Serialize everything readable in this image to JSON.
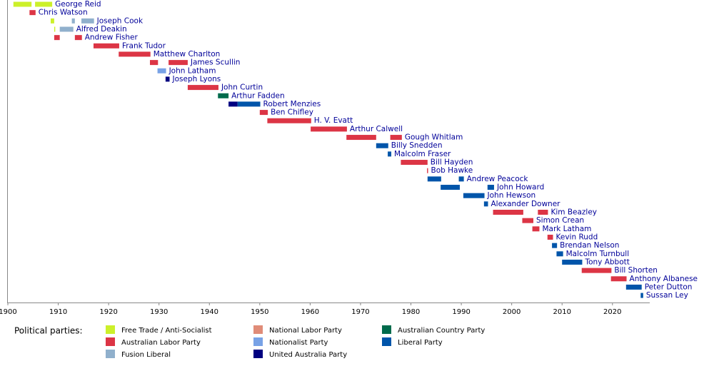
{
  "chart_data": {
    "type": "timeline",
    "xlim": [
      1900,
      2027.4
    ],
    "xticks": [
      1900,
      1910,
      1920,
      1930,
      1940,
      1950,
      1960,
      1970,
      1980,
      1990,
      2000,
      2010,
      2020
    ],
    "rows": [
      {
        "name": "George Reid",
        "segments": [
          {
            "start": 1901.1,
            "end": 1904.7,
            "color": "#ccf02a"
          },
          {
            "start": 1905.4,
            "end": 1908.8,
            "color": "#ccf02a"
          }
        ]
      },
      {
        "name": "Chris Watson",
        "segments": [
          {
            "start": 1904.3,
            "end": 1905.5,
            "color": "#dc3545"
          }
        ]
      },
      {
        "name": "Joseph Cook",
        "segments": [
          {
            "start": 1908.5,
            "end": 1909.2,
            "color": "#ccf02a"
          },
          {
            "start": 1912.7,
            "end": 1913.3,
            "color": "#90b0cc"
          },
          {
            "start": 1914.6,
            "end": 1917.1,
            "color": "#90b0cc"
          }
        ]
      },
      {
        "name": "Alfred Deakin",
        "segments": [
          {
            "start": 1909.2,
            "end": 1909.4,
            "color": "#ccf02a"
          },
          {
            "start": 1910.3,
            "end": 1913.0,
            "color": "#90b0cc"
          }
        ]
      },
      {
        "name": "Andrew Fisher",
        "segments": [
          {
            "start": 1909.2,
            "end": 1910.3,
            "color": "#dc3545"
          },
          {
            "start": 1913.3,
            "end": 1914.7,
            "color": "#dc3545"
          }
        ]
      },
      {
        "name": "Frank Tudor",
        "segments": [
          {
            "start": 1917.0,
            "end": 1922.1,
            "color": "#dc3545"
          }
        ]
      },
      {
        "name": "Matthew Charlton",
        "segments": [
          {
            "start": 1922.0,
            "end": 1928.3,
            "color": "#dc3545"
          }
        ]
      },
      {
        "name": "James Scullin",
        "segments": [
          {
            "start": 1928.2,
            "end": 1929.8,
            "color": "#dc3545"
          },
          {
            "start": 1931.9,
            "end": 1935.7,
            "color": "#dc3545"
          }
        ]
      },
      {
        "name": "John Latham",
        "segments": [
          {
            "start": 1929.7,
            "end": 1931.4,
            "color": "#78a2e6"
          }
        ]
      },
      {
        "name": "Joseph Lyons",
        "segments": [
          {
            "start": 1931.3,
            "end": 1932.1,
            "color": "#000080"
          }
        ]
      },
      {
        "name": "John Curtin",
        "segments": [
          {
            "start": 1935.7,
            "end": 1941.8,
            "color": "#dc3545"
          }
        ]
      },
      {
        "name": "Arthur Fadden",
        "segments": [
          {
            "start": 1941.7,
            "end": 1943.8,
            "color": "#006b4c"
          }
        ]
      },
      {
        "name": "Robert Menzies",
        "segments": [
          {
            "start": 1943.8,
            "end": 1945.6,
            "color": "#000080"
          },
          {
            "start": 1945.6,
            "end": 1950.1,
            "color": "#0055aa"
          }
        ]
      },
      {
        "name": "Ben Chifley",
        "segments": [
          {
            "start": 1950.0,
            "end": 1951.6,
            "color": "#dc3545"
          }
        ]
      },
      {
        "name": "H. V. Evatt",
        "segments": [
          {
            "start": 1951.5,
            "end": 1960.2,
            "color": "#dc3545"
          }
        ]
      },
      {
        "name": "Arthur Calwell",
        "segments": [
          {
            "start": 1960.1,
            "end": 1967.3,
            "color": "#dc3545"
          }
        ]
      },
      {
        "name": "Gough Whitlam",
        "segments": [
          {
            "start": 1967.2,
            "end": 1973.1,
            "color": "#dc3545"
          },
          {
            "start": 1975.9,
            "end": 1978.2,
            "color": "#dc3545"
          }
        ]
      },
      {
        "name": "Billy Snedden",
        "segments": [
          {
            "start": 1973.1,
            "end": 1975.5,
            "color": "#0055aa"
          }
        ]
      },
      {
        "name": "Malcolm Fraser",
        "segments": [
          {
            "start": 1975.4,
            "end": 1976.1,
            "color": "#0055aa"
          }
        ]
      },
      {
        "name": "Bill Hayden",
        "segments": [
          {
            "start": 1978.0,
            "end": 1983.3,
            "color": "#dc3545"
          }
        ]
      },
      {
        "name": "Bob Hawke",
        "segments": [
          {
            "start": 1983.2,
            "end": 1983.4,
            "color": "#dc3545"
          }
        ]
      },
      {
        "name": "Andrew Peacock",
        "segments": [
          {
            "start": 1983.3,
            "end": 1986.0,
            "color": "#0055aa"
          },
          {
            "start": 1989.5,
            "end": 1990.5,
            "color": "#0055aa"
          }
        ]
      },
      {
        "name": "John Howard",
        "segments": [
          {
            "start": 1985.9,
            "end": 1989.7,
            "color": "#0055aa"
          },
          {
            "start": 1995.2,
            "end": 1996.5,
            "color": "#0055aa"
          }
        ]
      },
      {
        "name": "John Hewson",
        "segments": [
          {
            "start": 1990.4,
            "end": 1994.6,
            "color": "#0055aa"
          }
        ]
      },
      {
        "name": "Alexander Downer",
        "segments": [
          {
            "start": 1994.5,
            "end": 1995.3,
            "color": "#0055aa"
          }
        ]
      },
      {
        "name": "Kim Beazley",
        "segments": [
          {
            "start": 1996.3,
            "end": 2002.3,
            "color": "#dc3545"
          },
          {
            "start": 2005.2,
            "end": 2007.2,
            "color": "#dc3545"
          }
        ]
      },
      {
        "name": "Simon Crean",
        "segments": [
          {
            "start": 2002.1,
            "end": 2004.3,
            "color": "#dc3545"
          }
        ]
      },
      {
        "name": "Mark Latham",
        "segments": [
          {
            "start": 2004.1,
            "end": 2005.5,
            "color": "#dc3545"
          }
        ]
      },
      {
        "name": "Kevin Rudd",
        "segments": [
          {
            "start": 2007.1,
            "end": 2008.2,
            "color": "#dc3545"
          }
        ]
      },
      {
        "name": "Brendan Nelson",
        "segments": [
          {
            "start": 2008.0,
            "end": 2009.0,
            "color": "#0055aa"
          }
        ]
      },
      {
        "name": "Malcolm Turnbull",
        "segments": [
          {
            "start": 2008.9,
            "end": 2010.2,
            "color": "#0055aa"
          }
        ]
      },
      {
        "name": "Tony Abbott",
        "segments": [
          {
            "start": 2010.0,
            "end": 2014.0,
            "color": "#0055aa"
          }
        ]
      },
      {
        "name": "Bill Shorten",
        "segments": [
          {
            "start": 2013.9,
            "end": 2019.8,
            "color": "#dc3545"
          }
        ]
      },
      {
        "name": "Anthony Albanese",
        "segments": [
          {
            "start": 2019.7,
            "end": 2022.8,
            "color": "#dc3545"
          }
        ]
      },
      {
        "name": "Peter Dutton",
        "segments": [
          {
            "start": 2022.7,
            "end": 2025.8,
            "color": "#0055aa"
          }
        ]
      },
      {
        "name": "Sussan Ley",
        "segments": [
          {
            "start": 2025.6,
            "end": 2026.1,
            "color": "#0055aa"
          }
        ]
      }
    ],
    "legend_title": "Political parties:",
    "parties": [
      {
        "name": "Free Trade / Anti-Socialist",
        "color": "#ccf02a"
      },
      {
        "name": "Australian Labor Party",
        "color": "#dc3545"
      },
      {
        "name": "Fusion Liberal",
        "color": "#90b0cc"
      },
      {
        "name": "National Labor Party",
        "color": "#e08c78"
      },
      {
        "name": "Nationalist Party",
        "color": "#78a2e6"
      },
      {
        "name": "United Australia Party",
        "color": "#000080"
      },
      {
        "name": "Australian Country Party",
        "color": "#006b4c"
      },
      {
        "name": "Liberal Party",
        "color": "#0055aa"
      }
    ]
  }
}
